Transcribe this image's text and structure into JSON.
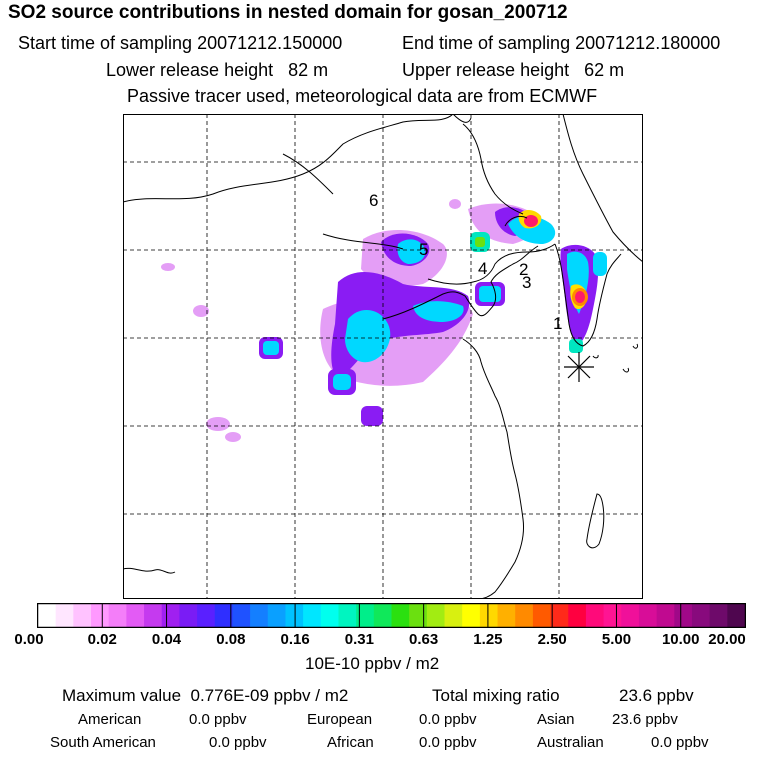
{
  "header": {
    "title": "SO2 source contributions in nested domain for gosan_200712",
    "start_label": "Start time of sampling",
    "start_value": "20071212.150000",
    "end_label": "End time of sampling",
    "end_value": "20071212.180000",
    "lower_label": "Lower release height",
    "lower_value": "82 m",
    "upper_label": "Upper release height",
    "upper_value": "62 m",
    "tracer_note": "Passive tracer used, meteorological data are from ECMWF"
  },
  "map": {
    "site_labels": [
      "1",
      "2",
      "3",
      "4",
      "5",
      "6"
    ],
    "receptor_marker": "asterisk-receptor-icon"
  },
  "colorbar": {
    "ticks": [
      "0.00",
      "0.02",
      "0.04",
      "0.08",
      "0.16",
      "0.31",
      "0.63",
      "1.25",
      "2.50",
      "5.00",
      "10.00",
      "20.00"
    ],
    "unit": "10E-10 ppbv / m2",
    "colors": [
      "#ffffff",
      "#ffe6ff",
      "#ffc2ff",
      "#ff99ff",
      "#f47ef9",
      "#e35bf5",
      "#c53aef",
      "#a020f0",
      "#7a1cf5",
      "#5a20ff",
      "#2f2fff",
      "#1f52ff",
      "#147fff",
      "#0aa0ff",
      "#00c2ff",
      "#00e6ff",
      "#00ffee",
      "#00f5c0",
      "#00ee8a",
      "#10e85a",
      "#2be010",
      "#6be010",
      "#a2ec12",
      "#d8f010",
      "#ffff00",
      "#ffd800",
      "#ffb000",
      "#ff8a00",
      "#ff5a00",
      "#ff2a1a",
      "#ff0040",
      "#ff0a7a",
      "#ff1493",
      "#f0109a",
      "#d80d98",
      "#c00a90",
      "#a00888",
      "#880a7d",
      "#6e0a6a",
      "#4f064f"
    ]
  },
  "stats": {
    "max_label": "Maximum value",
    "max_value": "0.776E-09 ppbv / m2",
    "total_label": "Total mixing ratio",
    "total_value": "23.6 ppbv",
    "regions": [
      {
        "label": "American",
        "value": "0.0 ppbv"
      },
      {
        "label": "European",
        "value": "0.0 ppbv"
      },
      {
        "label": "Asian",
        "value": "23.6 ppbv"
      },
      {
        "label": "South American",
        "value": "0.0 ppbv"
      },
      {
        "label": "African",
        "value": "0.0 ppbv"
      },
      {
        "label": "Australian",
        "value": "0.0 ppbv"
      }
    ]
  }
}
